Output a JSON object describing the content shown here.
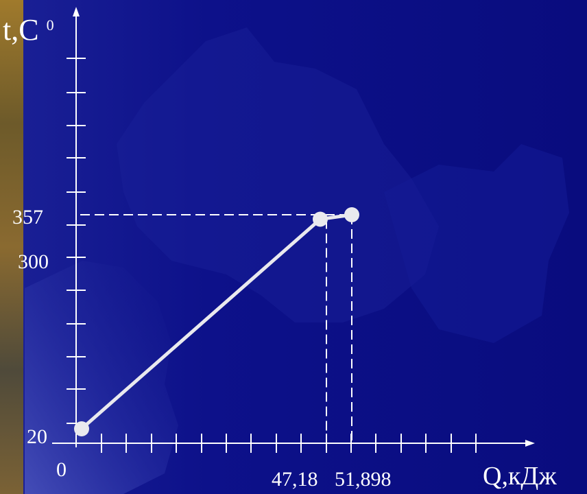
{
  "chart_data": {
    "type": "line",
    "y_axis_label": "t,C",
    "y_axis_label_superscript": "0",
    "x_axis_label": "Q,кДж",
    "origin_label": "0",
    "y_tick_labels": [
      "20",
      "300",
      "357"
    ],
    "x_tick_labels": [
      "47,18",
      "51,898"
    ],
    "series": [
      {
        "points": [
          {
            "x": 0,
            "y": 20
          },
          {
            "x": 47.18,
            "y": 350
          },
          {
            "x": 51.898,
            "y": 357
          }
        ]
      }
    ],
    "reference_lines": {
      "horizontal": [
        357
      ],
      "vertical": [
        47.18,
        51.898
      ]
    },
    "grid": false,
    "colors": {
      "background": "#0c0f86",
      "line": "#e9e9ee",
      "axis": "#ffffff"
    }
  }
}
